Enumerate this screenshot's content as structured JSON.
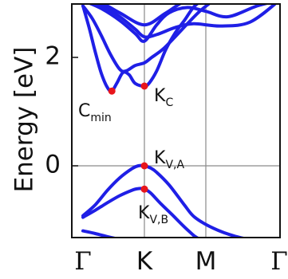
{
  "chart_data": {
    "type": "line",
    "ylabel": "Energy [eV]",
    "x_ticks": [
      "Γ",
      "K",
      "M",
      "Γ"
    ],
    "y_ticks": [
      "0",
      "2"
    ],
    "ylim": [
      -1.35,
      2.9
    ],
    "grid": "vertical at K and M, horizontal at 0",
    "line_color": "#1f1fe6",
    "point_color": "#e8151b",
    "series": [
      {
        "x": [
          0.0,
          0.1,
          0.2,
          0.3,
          0.4,
          0.47,
          0.55,
          0.65,
          0.75,
          0.85,
          1.0,
          1.08,
          1.2,
          1.35,
          1.5,
          1.65,
          1.82,
          2.0,
          2.3,
          2.6,
          2.85,
          3.0
        ],
        "y": [
          2.95,
          2.55,
          2.1,
          1.7,
          1.44,
          1.38,
          1.52,
          1.72,
          1.68,
          1.52,
          1.47,
          1.53,
          1.75,
          2.15,
          2.45,
          2.68,
          2.95,
          3.05,
          3.05,
          3.05,
          3.05,
          3.05
        ]
      },
      {
        "x": [
          0.0,
          0.15,
          0.3,
          0.45,
          0.6,
          0.7,
          0.85,
          1.0,
          1.12,
          1.3,
          1.5,
          1.7,
          1.9,
          2.1
        ],
        "y": [
          2.95,
          2.72,
          2.4,
          2.05,
          1.78,
          1.75,
          1.85,
          1.9,
          2.0,
          2.15,
          2.38,
          2.62,
          2.85,
          3.05
        ]
      },
      {
        "x": [
          0.0,
          0.3,
          0.6,
          0.85,
          1.0,
          1.2,
          1.5,
          1.8,
          2.2,
          2.6,
          3.0
        ],
        "y": [
          3.05,
          2.95,
          2.75,
          2.52,
          2.38,
          2.42,
          2.55,
          2.62,
          2.58,
          2.65,
          3.05
        ]
      },
      {
        "x": [
          0.0,
          0.3,
          0.6,
          0.85,
          1.0,
          1.2,
          1.4,
          1.7,
          2.0,
          2.3,
          2.7,
          3.0
        ],
        "y": [
          3.05,
          2.9,
          2.68,
          2.44,
          2.3,
          2.6,
          2.82,
          2.92,
          2.85,
          2.75,
          2.95,
          3.05
        ]
      },
      {
        "x": [
          0.0,
          0.3,
          0.6,
          1.0,
          1.35,
          1.7,
          2.1,
          2.6,
          3.0
        ],
        "y": [
          3.05,
          3.0,
          2.82,
          2.6,
          2.82,
          3.05,
          3.05,
          3.05,
          3.05
        ]
      },
      {
        "x": [
          0.0,
          0.2,
          0.4,
          0.6,
          0.8,
          0.9,
          1.0,
          1.1,
          1.2,
          1.4,
          1.65,
          1.82,
          2.1,
          2.4,
          2.7,
          3.0
        ],
        "y": [
          -0.92,
          -0.72,
          -0.45,
          -0.22,
          -0.05,
          0.0,
          0.0,
          -0.04,
          -0.12,
          -0.35,
          -0.72,
          -0.95,
          -1.15,
          -1.3,
          -1.38,
          -1.42
        ]
      },
      {
        "x": [
          0.0,
          0.2,
          0.4,
          0.6,
          0.8,
          0.9,
          1.0,
          1.1,
          1.25,
          1.45,
          1.7,
          1.9,
          2.2,
          2.5,
          2.8,
          3.0
        ],
        "y": [
          -0.95,
          -0.82,
          -0.68,
          -0.55,
          -0.45,
          -0.42,
          -0.43,
          -0.5,
          -0.68,
          -0.9,
          -1.18,
          -1.35,
          -1.42,
          -1.42,
          -1.42,
          -1.42
        ]
      },
      {
        "x": [
          0.0,
          0.2,
          0.45,
          0.7,
          0.9,
          1.0,
          1.15,
          1.4,
          1.7,
          2.0,
          2.4,
          2.8,
          3.0
        ],
        "y": [
          -1.2,
          -1.25,
          -1.32,
          -1.38,
          -1.42,
          -1.42,
          -1.42,
          -1.42,
          -1.42,
          -1.42,
          -1.42,
          -1.42,
          -1.42
        ]
      }
    ],
    "highlighted_points": [
      {
        "label": "C",
        "sub": "min",
        "x": 0.47,
        "y": 1.38
      },
      {
        "label": "K",
        "sub": "C",
        "x": 1.0,
        "y": 1.47
      },
      {
        "label": "K",
        "sub": "V,A",
        "x": 1.0,
        "y": 0.0
      },
      {
        "label": "K",
        "sub": "V,B",
        "x": 1.0,
        "y": -0.43
      }
    ]
  }
}
